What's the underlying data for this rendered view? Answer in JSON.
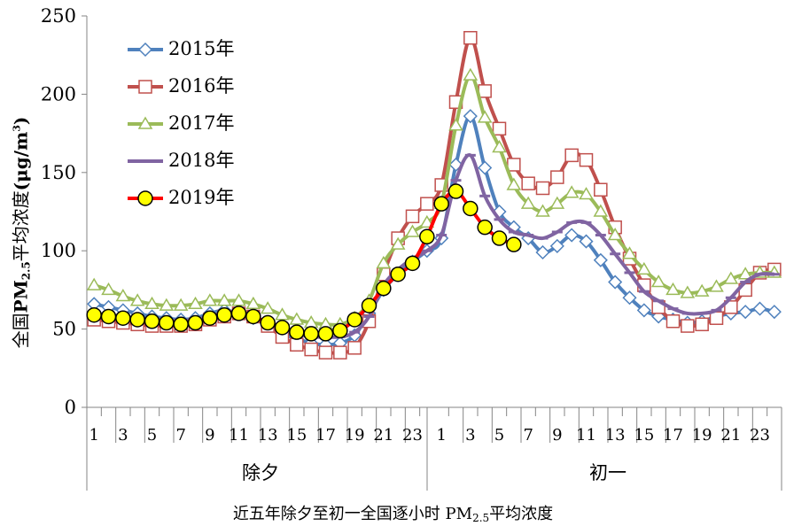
{
  "chart_data": {
    "type": "line",
    "ylabel_parts": {
      "a": "全国",
      "b": "PM",
      "sub": "2.5",
      "c": "平均浓度",
      "d": "(μg/m",
      "sup": "3",
      "e": ")"
    },
    "caption_parts": {
      "a": "近五年除夕至初一全国逐小时 PM",
      "sub": "2.5",
      "b": "平均浓度"
    },
    "ylim": [
      0,
      250
    ],
    "yticks": [
      0,
      50,
      100,
      150,
      200,
      250
    ],
    "xticks": [
      "1",
      "3",
      "5",
      "7",
      "9",
      "11",
      "13",
      "15",
      "17",
      "19",
      "21",
      "23",
      "1",
      "3",
      "5",
      "7",
      "9",
      "11",
      "13",
      "15",
      "17",
      "19",
      "21",
      "23"
    ],
    "groups": [
      "除夕",
      "初一"
    ],
    "grid": false,
    "legend_position": "top-left",
    "series": [
      {
        "name": "2015年",
        "color": "#4F81BD",
        "marker": "diamond",
        "values": [
          66,
          64,
          62,
          60,
          58,
          57,
          56,
          57,
          60,
          62,
          60,
          57,
          53,
          47,
          44,
          41,
          40,
          41,
          46,
          60,
          75,
          85,
          93,
          100,
          108,
          155,
          186,
          153,
          125,
          115,
          108,
          99,
          103,
          110,
          106,
          94,
          80,
          70,
          62,
          58,
          56,
          54,
          55,
          58,
          60,
          61,
          63,
          61
        ]
      },
      {
        "name": "2016年",
        "color": "#C0504D",
        "marker": "square",
        "values": [
          56,
          55,
          54,
          53,
          52,
          52,
          52,
          53,
          56,
          58,
          60,
          58,
          52,
          45,
          40,
          37,
          35,
          35,
          38,
          55,
          85,
          108,
          122,
          130,
          142,
          195,
          236,
          202,
          178,
          155,
          143,
          140,
          147,
          161,
          158,
          139,
          115,
          95,
          78,
          64,
          55,
          52,
          53,
          57,
          64,
          75,
          86,
          88
        ]
      },
      {
        "name": "2017年",
        "color": "#9BBB59",
        "marker": "triangle",
        "values": [
          78,
          75,
          71,
          68,
          66,
          65,
          65,
          66,
          68,
          68,
          68,
          66,
          63,
          59,
          56,
          54,
          53,
          53,
          57,
          68,
          92,
          104,
          112,
          118,
          130,
          180,
          212,
          185,
          166,
          142,
          130,
          125,
          130,
          137,
          136,
          125,
          110,
          98,
          88,
          80,
          75,
          73,
          74,
          77,
          82,
          85,
          86,
          86
        ]
      },
      {
        "name": "2018年",
        "color": "#8064A2",
        "marker": "line",
        "values": [
          60,
          59,
          58,
          57,
          56,
          56,
          55,
          56,
          58,
          60,
          60,
          58,
          54,
          50,
          47,
          45,
          45,
          45,
          48,
          58,
          78,
          88,
          95,
          100,
          110,
          145,
          161,
          135,
          120,
          112,
          110,
          108,
          112,
          118,
          118,
          110,
          98,
          86,
          74,
          68,
          63,
          60,
          60,
          62,
          70,
          80,
          85,
          85
        ]
      },
      {
        "name": "2019年",
        "color": "#FF0000",
        "marker": "circle",
        "values": [
          59,
          58,
          57,
          56,
          55,
          54,
          53,
          54,
          57,
          59,
          60,
          58,
          54,
          51,
          48,
          47,
          47,
          49,
          56,
          65,
          76,
          85,
          92,
          109,
          130,
          138,
          127,
          115,
          108,
          104
        ]
      }
    ]
  }
}
